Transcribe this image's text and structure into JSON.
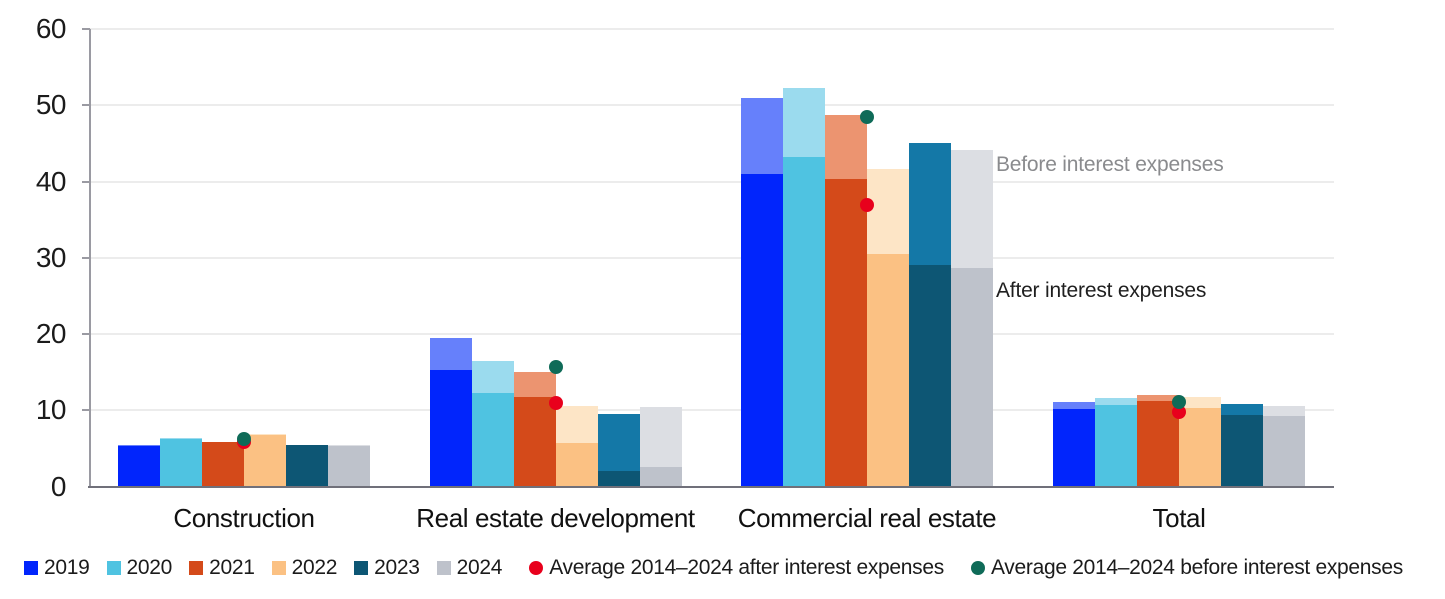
{
  "chart_data": {
    "type": "bar",
    "variant": "grouped two-tone bars; light upper segment = before interest expenses, solid lower segment = after interest expenses; dots = 2014-2024 averages",
    "title": "",
    "xlabel": "",
    "ylabel": "",
    "grid": "horizontal",
    "legend_position": "bottom",
    "categories": [
      "Construction",
      "Real estate development",
      "Commercial real estate",
      "Total"
    ],
    "y_axis": {
      "min": 0,
      "max": 60,
      "step": 10,
      "tick_labels": [
        "0",
        "10",
        "20",
        "30",
        "40",
        "50",
        "60"
      ]
    },
    "series": [
      {
        "name": "2019",
        "solid_color": "#0125fc",
        "light_color": "#6680fb",
        "before": [
          5.4,
          19.5,
          51.0,
          11.1
        ],
        "after": [
          5.3,
          15.3,
          41.0,
          10.2
        ]
      },
      {
        "name": "2020",
        "solid_color": "#4fc3e1",
        "light_color": "#9bdbee",
        "before": [
          6.3,
          16.5,
          52.3,
          11.6
        ],
        "after": [
          6.2,
          12.2,
          43.2,
          10.7
        ]
      },
      {
        "name": "2021",
        "solid_color": "#d44a1a",
        "light_color": "#ec9470",
        "before": [
          5.9,
          15.0,
          48.7,
          12.0
        ],
        "after": [
          5.8,
          11.8,
          40.3,
          11.2
        ]
      },
      {
        "name": "2022",
        "solid_color": "#fbc183",
        "light_color": "#fde5c6",
        "before": [
          6.9,
          10.5,
          41.7,
          11.7
        ],
        "after": [
          6.8,
          5.7,
          30.5,
          10.3
        ]
      },
      {
        "name": "2023",
        "solid_color": "#0d5674",
        "light_color": "#1478a7",
        "before": [
          5.5,
          9.5,
          45.1,
          10.8
        ],
        "after": [
          5.4,
          2.0,
          29.1,
          9.4
        ]
      },
      {
        "name": "2024",
        "solid_color": "#bec2cb",
        "light_color": "#dcdee3",
        "before": [
          5.4,
          10.4,
          44.1,
          10.5
        ],
        "after": [
          5.3,
          2.6,
          28.6,
          9.3
        ]
      }
    ],
    "markers": [
      {
        "name": "Average 2014–2024 after interest expenses",
        "color": "#e8001c",
        "values": [
          5.9,
          10.9,
          36.9,
          9.8
        ]
      },
      {
        "name": "Average 2014–2024 before interest expenses",
        "color": "#0f6b58",
        "values": [
          6.2,
          15.7,
          48.4,
          11.1
        ]
      }
    ],
    "annotations": [
      {
        "text": "Before interest expenses",
        "color": "#8a8b8e"
      },
      {
        "text": "After interest expenses",
        "color": "#1f1f1f"
      }
    ]
  }
}
